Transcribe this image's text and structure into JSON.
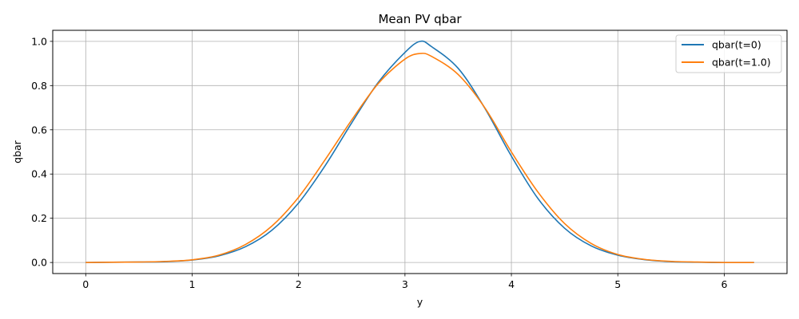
{
  "chart_data": {
    "type": "line",
    "title": "Mean PV qbar",
    "xlabel": "y",
    "ylabel": "qbar",
    "xlim": [
      -0.31,
      6.59
    ],
    "ylim": [
      -0.05,
      1.05
    ],
    "xticks": [
      0,
      1,
      2,
      3,
      4,
      5,
      6
    ],
    "xtick_labels": [
      "0",
      "1",
      "2",
      "3",
      "4",
      "5",
      "6"
    ],
    "yticks": [
      0.0,
      0.2,
      0.4,
      0.6,
      0.8,
      1.0
    ],
    "ytick_labels": [
      "0.0",
      "0.2",
      "0.4",
      "0.6",
      "0.8",
      "1.0"
    ],
    "grid": true,
    "legend_position": "top-right",
    "x": [
      0.0,
      0.25,
      0.5,
      0.75,
      1.0,
      1.25,
      1.5,
      1.75,
      2.0,
      2.25,
      2.5,
      2.75,
      3.0,
      3.14159,
      3.25,
      3.5,
      3.75,
      4.0,
      4.25,
      4.5,
      4.75,
      5.0,
      5.25,
      5.5,
      5.75,
      6.0,
      6.28
    ],
    "series": [
      {
        "name": "qbar(t=0)",
        "color": "#1f77b4",
        "values": [
          0.0,
          0.001,
          0.002,
          0.004,
          0.011,
          0.03,
          0.071,
          0.146,
          0.269,
          0.438,
          0.632,
          0.815,
          0.95,
          1.0,
          0.976,
          0.878,
          0.698,
          0.481,
          0.289,
          0.155,
          0.075,
          0.033,
          0.013,
          0.004,
          0.001,
          0.0,
          0.0
        ]
      },
      {
        "name": "qbar(t=1.0)",
        "color": "#ff7f0e",
        "values": [
          0.0,
          0.001,
          0.002,
          0.005,
          0.012,
          0.033,
          0.081,
          0.165,
          0.295,
          0.465,
          0.645,
          0.81,
          0.92,
          0.945,
          0.932,
          0.85,
          0.7,
          0.5,
          0.318,
          0.176,
          0.086,
          0.036,
          0.014,
          0.005,
          0.002,
          0.0,
          0.0
        ]
      }
    ]
  }
}
